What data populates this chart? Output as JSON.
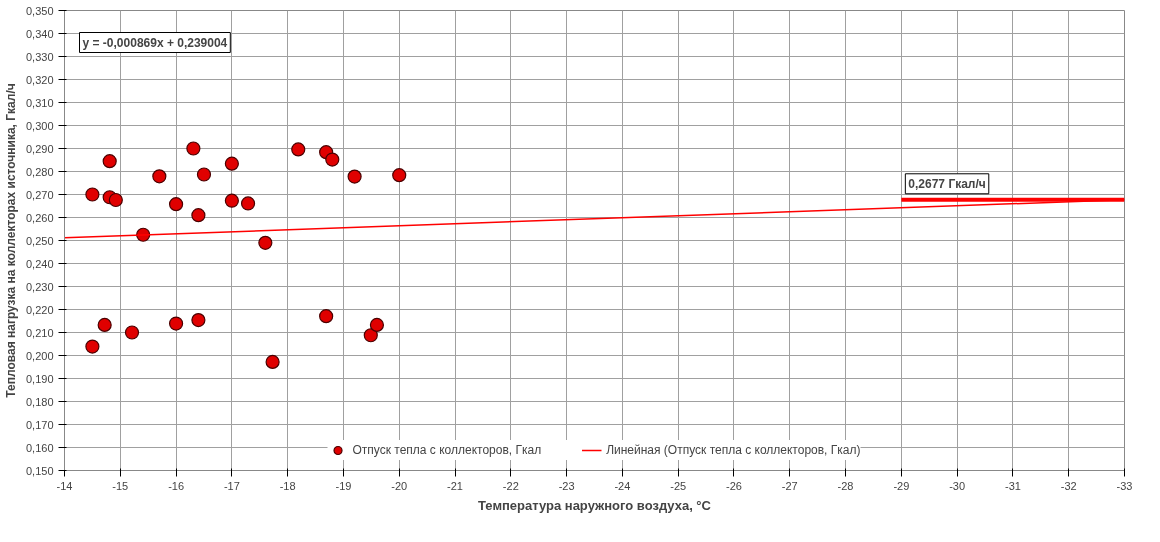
{
  "chart_data": {
    "type": "scatter",
    "xlabel": "Температура наружного воздуха, °С",
    "ylabel": "Тепловая нагрузка на коллекторах источника, Гкал/ч",
    "xlim": [
      -14,
      -33
    ],
    "xticks": [
      {
        "value": -14,
        "label": "-14"
      },
      {
        "value": -15,
        "label": "-15"
      },
      {
        "value": -16,
        "label": "-16"
      },
      {
        "value": -17,
        "label": "-17"
      },
      {
        "value": -18,
        "label": "-18"
      },
      {
        "value": -19,
        "label": "-19"
      },
      {
        "value": -20,
        "label": "-20"
      },
      {
        "value": -21,
        "label": "-21"
      },
      {
        "value": -22,
        "label": "-22"
      },
      {
        "value": -23,
        "label": "-23"
      },
      {
        "value": -24,
        "label": "-24"
      },
      {
        "value": -25,
        "label": "-25"
      },
      {
        "value": -26,
        "label": "-26"
      },
      {
        "value": -27,
        "label": "-27"
      },
      {
        "value": -28,
        "label": "-28"
      },
      {
        "value": -29,
        "label": "-29"
      },
      {
        "value": -30,
        "label": "-30"
      },
      {
        "value": -31,
        "label": "-31"
      },
      {
        "value": -32,
        "label": "-32"
      },
      {
        "value": -33,
        "label": "-33"
      }
    ],
    "ylim": [
      0.15,
      0.35
    ],
    "yticks": [
      {
        "value": 0.15,
        "label": "0,150"
      },
      {
        "value": 0.16,
        "label": "0,160"
      },
      {
        "value": 0.17,
        "label": "0,170"
      },
      {
        "value": 0.18,
        "label": "0,180"
      },
      {
        "value": 0.19,
        "label": "0,190"
      },
      {
        "value": 0.2,
        "label": "0,200"
      },
      {
        "value": 0.21,
        "label": "0,210"
      },
      {
        "value": 0.22,
        "label": "0,220"
      },
      {
        "value": 0.23,
        "label": "0,230"
      },
      {
        "value": 0.24,
        "label": "0,240"
      },
      {
        "value": 0.25,
        "label": "0,250"
      },
      {
        "value": 0.26,
        "label": "0,260"
      },
      {
        "value": 0.27,
        "label": "0,270"
      },
      {
        "value": 0.28,
        "label": "0,280"
      },
      {
        "value": 0.29,
        "label": "0,290"
      },
      {
        "value": 0.3,
        "label": "0,300"
      },
      {
        "value": 0.31,
        "label": "0,310"
      },
      {
        "value": 0.32,
        "label": "0,320"
      },
      {
        "value": 0.33,
        "label": "0,330"
      },
      {
        "value": 0.34,
        "label": "0,340"
      },
      {
        "value": 0.35,
        "label": "0,350"
      }
    ],
    "grid": true,
    "legend": "bottom",
    "series": [
      {
        "type": "scatter",
        "name": "Отпуск тепла с коллекторов, Гкал",
        "marker": "circle",
        "color": "#e00000",
        "x": [
          -14.5,
          -14.81,
          -14.81,
          -14.92,
          -15.41,
          -15.7,
          -16.0,
          -16.31,
          -16.5,
          -16.4,
          -17.0,
          -17.0,
          -17.29,
          -17.6,
          -18.19,
          -18.69,
          -18.8,
          -19.2,
          -20.0,
          -14.5,
          -14.72,
          -15.21,
          -16.0,
          -16.4,
          -17.73,
          -18.69,
          -19.49,
          -19.6
        ],
        "values": [
          0.27,
          0.2845,
          0.2688,
          0.2676,
          0.2525,
          0.2779,
          0.2658,
          0.29,
          0.2787,
          0.261,
          0.2834,
          0.2673,
          0.2661,
          0.249,
          0.2896,
          0.2884,
          0.2852,
          0.2778,
          0.2784,
          0.2039,
          0.2133,
          0.21,
          0.2139,
          0.2154,
          0.1972,
          0.2171,
          0.2088,
          0.2133
        ]
      },
      {
        "type": "line",
        "name": "Линейная (Отпуск тепла с коллекторов, Гкал)",
        "color": "#ff0000",
        "line_style": "solid",
        "x": [
          -14,
          -33
        ],
        "values": [
          0.2512,
          0.2677
        ]
      },
      {
        "type": "line",
        "color": "#ff0000",
        "line_style": "solid",
        "x": [
          -29,
          -33
        ],
        "values": [
          0.2677,
          0.2677
        ]
      }
    ],
    "annotations": [
      "y = -0,000869x + 0,239004",
      {
        "text": "0,2677 Гкал/ч",
        "x": -29,
        "y": 0.2677
      }
    ]
  }
}
